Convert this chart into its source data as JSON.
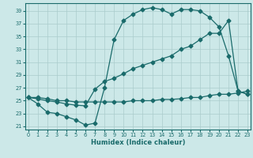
{
  "xlabel": "Humidex (Indice chaleur)",
  "bg_color": "#cce8e8",
  "grid_color": "#aacccc",
  "line_color": "#1a6b6b",
  "x_ticks": [
    0,
    1,
    2,
    3,
    4,
    5,
    6,
    7,
    8,
    9,
    10,
    11,
    12,
    13,
    14,
    15,
    16,
    17,
    18,
    19,
    20,
    21,
    22,
    23
  ],
  "y_ticks": [
    21,
    23,
    25,
    27,
    29,
    31,
    33,
    35,
    37,
    39
  ],
  "xlim": [
    -0.3,
    23.3
  ],
  "ylim": [
    20.5,
    40.2
  ],
  "line1_x": [
    0,
    1,
    2,
    3,
    4,
    5,
    6,
    7,
    8,
    9,
    10,
    11,
    12,
    13,
    14,
    15,
    16,
    17,
    18,
    19,
    20,
    21,
    22,
    23
  ],
  "line1_y": [
    25.5,
    24.5,
    23.2,
    23.0,
    22.5,
    22.0,
    21.2,
    21.5,
    27.0,
    34.5,
    37.5,
    38.5,
    39.2,
    39.5,
    39.2,
    38.5,
    39.2,
    39.2,
    39.0,
    38.0,
    36.5,
    32.0,
    26.5,
    26.0
  ],
  "line2_x": [
    0,
    1,
    2,
    3,
    4,
    5,
    6,
    7,
    8,
    9,
    10,
    11,
    12,
    13,
    14,
    15,
    16,
    17,
    18,
    19,
    20,
    21,
    22,
    23
  ],
  "line2_y": [
    25.5,
    25.3,
    25.0,
    24.8,
    24.5,
    24.3,
    24.2,
    26.8,
    28.0,
    28.5,
    29.2,
    30.0,
    30.5,
    31.0,
    31.5,
    32.0,
    33.0,
    33.5,
    34.5,
    35.5,
    35.5,
    37.5,
    26.5,
    26.0
  ],
  "line3_x": [
    0,
    1,
    2,
    3,
    4,
    5,
    6,
    7,
    8,
    9,
    10,
    11,
    12,
    13,
    14,
    15,
    16,
    17,
    18,
    19,
    20,
    21,
    22,
    23
  ],
  "line3_y": [
    25.5,
    25.5,
    25.3,
    25.0,
    25.0,
    24.8,
    24.8,
    24.8,
    24.8,
    24.8,
    24.8,
    25.0,
    25.0,
    25.0,
    25.2,
    25.2,
    25.3,
    25.5,
    25.5,
    25.8,
    26.0,
    26.0,
    26.2,
    26.5
  ]
}
